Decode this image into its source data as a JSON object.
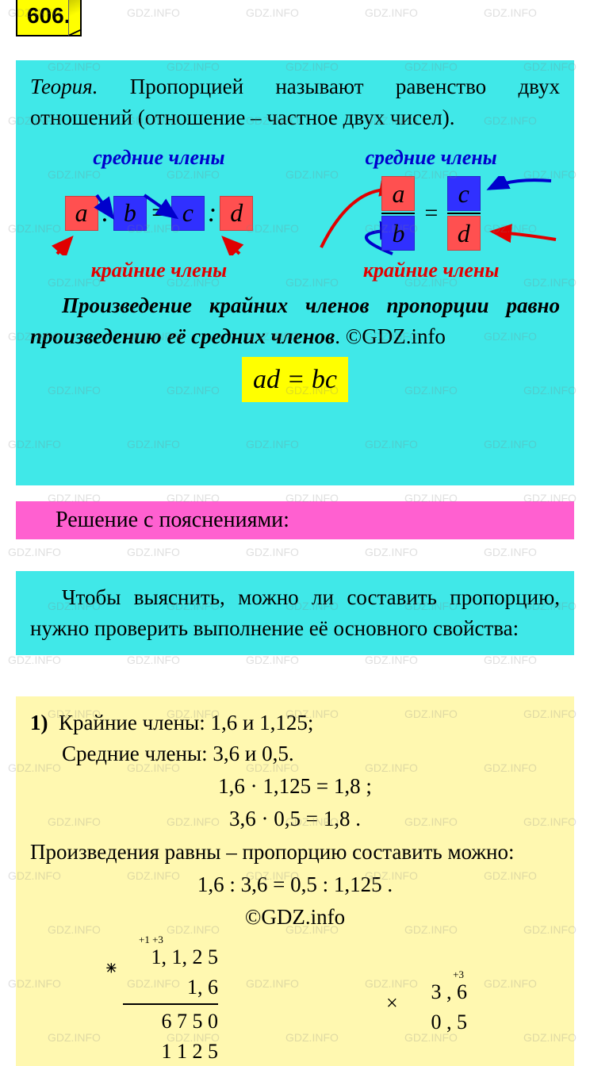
{
  "watermark_text": "GDZ.INFO",
  "problem_number": "606.",
  "theory": {
    "title_word": "Теория",
    "intro": "Пропорцией называют ра­венство двух отношений (отношение – частное двух чисел).",
    "label_middle": "средние члены",
    "label_outer": "крайние члены",
    "terms": {
      "a": "a",
      "b": "b",
      "c": "c",
      "d": "d"
    },
    "rule_part1": "Произведение крайних членов пропорции равно произведению её средних членов",
    "copyright": "©GDZ.info",
    "formula": "ad = bc"
  },
  "pink_header": "Решение с пояснениями:",
  "check_text": "Чтобы выяснить, можно ли составить пропорцию, нужно проверить выполне­ние её основного свойства:",
  "solution": {
    "item_num": "1)",
    "line1": "Крайние члены: 1,6 и 1,125;",
    "line2": "Средние члены: 3,6 и 0,5.",
    "calc1": "1,6 · 1,125 = 1,8 ;",
    "calc2": "3,6 · 0,5 = 1,8 .",
    "conclusion": "Произведения равны – пропорцию со­ставить можно:",
    "result": "1,6 : 3,6 = 0,5 : 1,125 .",
    "copyright": "©GDZ.info",
    "mult_left": {
      "carry": "+1 +3",
      "n1": "1, 1, 2 5",
      "n2": "1, 6",
      "p1": "6 7 5 0",
      "p2": "1 1 2 5"
    },
    "mult_right": {
      "carry": "+3",
      "n1": "3 , 6",
      "n2": "0 , 5"
    }
  },
  "colors": {
    "yellow": "#ffff00",
    "cyan": "#40e8e8",
    "pink": "#ff60d0",
    "pale_yellow": "#fff8b0",
    "term_red": "#ff5050",
    "term_blue": "#3030ff",
    "label_blue": "#0000cc",
    "label_red": "#e00000"
  }
}
